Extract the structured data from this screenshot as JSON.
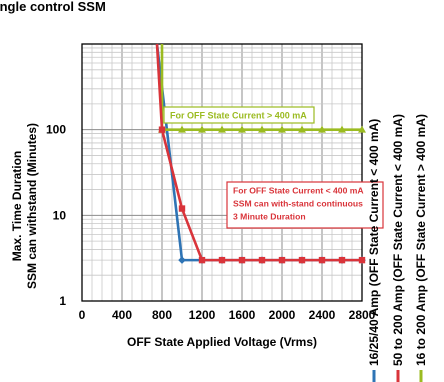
{
  "chart_data": {
    "type": "line",
    "title": "ingle control SSM",
    "ylabel_lines": [
      "Max. Time Duration",
      "SSM can withstand (Minutes)"
    ],
    "xlabel": "OFF State Applied Voltage (Vrms)",
    "x_ticks": [
      0,
      400,
      800,
      1200,
      1600,
      2000,
      2400,
      2800
    ],
    "x_tick_labels": [
      "0",
      "400",
      "800",
      "1200",
      "1600",
      "2000",
      "2400",
      "2800"
    ],
    "xlim": [
      0,
      2800
    ],
    "y_scale": "log",
    "ylim": [
      1,
      1000
    ],
    "y_ticks": [
      1,
      10,
      100
    ],
    "y_tick_labels": [
      "1",
      "10",
      "100"
    ],
    "grid": true,
    "series": [
      {
        "name": "16/25/40 Amp  (OFF State Current < 400 mA)",
        "color": "#2e74b5",
        "x": [
          750,
          1000,
          1200,
          1400,
          1600,
          1800,
          2000,
          2200,
          2400,
          2600,
          2800
        ],
        "y": [
          1000,
          3,
          3,
          3,
          3,
          3,
          3,
          3,
          3,
          3,
          3
        ]
      },
      {
        "name": "50 to 200 Amp  (OFF State Current < 400 mA)",
        "color": "#d9343a",
        "x": [
          750,
          800,
          1000,
          1200,
          1400,
          1600,
          1800,
          2000,
          2200,
          2400,
          2600,
          2800
        ],
        "y": [
          1000,
          100,
          12,
          3,
          3,
          3,
          3,
          3,
          3,
          3,
          3,
          3
        ]
      },
      {
        "name": "16 to 200 Amp  (OFF State Current > 400 mA)",
        "color": "#9bbb21",
        "x": [
          800,
          800,
          1000,
          1200,
          1400,
          1600,
          1800,
          2000,
          2200,
          2400,
          2600,
          2800
        ],
        "y": [
          1000,
          100,
          100,
          100,
          100,
          100,
          100,
          100,
          100,
          100,
          100,
          100
        ]
      }
    ],
    "annotations": [
      {
        "lines": [
          "For OFF State Current > 400 mA"
        ],
        "color": "#9bbb21",
        "text_color": "#9bbb21"
      },
      {
        "lines": [
          "For OFF State Current < 400 mA",
          "SSM can with-stand continuous",
          "3 Minute Duration"
        ],
        "color": "#d9343a",
        "text_color": "#d9343a"
      }
    ]
  }
}
